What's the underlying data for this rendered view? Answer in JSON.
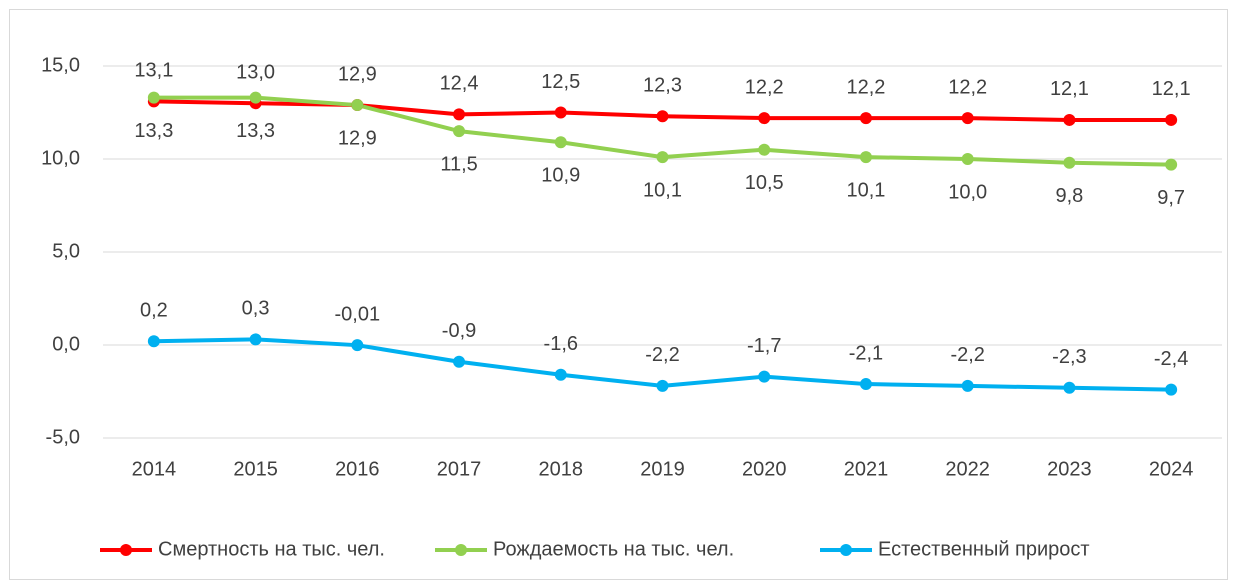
{
  "chart_data": {
    "type": "line",
    "categories": [
      "2014",
      "2015",
      "2016",
      "2017",
      "2018",
      "2019",
      "2020",
      "2021",
      "2022",
      "2023",
      "2024"
    ],
    "series": [
      {
        "name": "Смертность на тыс. чел.",
        "color": "#ff0000",
        "values": [
          13.1,
          13.0,
          12.9,
          12.4,
          12.5,
          12.3,
          12.2,
          12.2,
          12.2,
          12.1,
          12.1
        ],
        "value_labels": [
          "13,1",
          "13,0",
          "12,9",
          "12,4",
          "12,5",
          "12,3",
          "12,2",
          "12,2",
          "12,2",
          "12,1",
          "12,1"
        ]
      },
      {
        "name": "Рождаемость на тыс. чел.",
        "color": "#92d050",
        "values": [
          13.3,
          13.3,
          12.9,
          11.5,
          10.9,
          10.1,
          10.5,
          10.1,
          10.0,
          9.8,
          9.7
        ],
        "value_labels": [
          "13,3",
          "13,3",
          "12,9",
          "11,5",
          "10,9",
          "10,1",
          "10,5",
          "10,1",
          "10,0",
          "9,8",
          "9,7"
        ]
      },
      {
        "name": "Естественный прирост",
        "color": "#00b0f0",
        "values": [
          0.2,
          0.3,
          -0.01,
          -0.9,
          -1.6,
          -2.2,
          -1.7,
          -2.1,
          -2.2,
          -2.3,
          -2.4
        ],
        "value_labels": [
          "0,2",
          "0,3",
          "-0,01",
          "-0,9",
          "-1,6",
          "-2,2",
          "-1,7",
          "-2,1",
          "-2,2",
          "-2,3",
          "-2,4"
        ]
      }
    ],
    "ylim": [
      -5,
      15
    ],
    "yticks": [
      {
        "value": -5,
        "label": "-5,0"
      },
      {
        "value": 0,
        "label": "0,0"
      },
      {
        "value": 5,
        "label": "5,0"
      },
      {
        "value": 10,
        "label": "10,0"
      },
      {
        "value": 15,
        "label": "15,0"
      }
    ],
    "grid": true,
    "legend": "bottom"
  }
}
